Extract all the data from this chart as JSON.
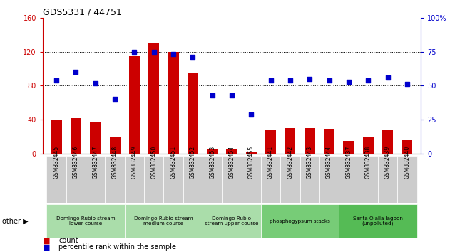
{
  "title": "GDS5331 / 44751",
  "samples": [
    "GSM832445",
    "GSM832446",
    "GSM832447",
    "GSM832448",
    "GSM832449",
    "GSM832450",
    "GSM832451",
    "GSM832452",
    "GSM832453",
    "GSM832454",
    "GSM832455",
    "GSM832441",
    "GSM832442",
    "GSM832443",
    "GSM832444",
    "GSM832437",
    "GSM832438",
    "GSM832439",
    "GSM832440"
  ],
  "counts": [
    40,
    42,
    37,
    20,
    115,
    130,
    120,
    95,
    5,
    5,
    2,
    28,
    30,
    30,
    29,
    15,
    20,
    28,
    16
  ],
  "percentiles": [
    54,
    60,
    52,
    40,
    75,
    75,
    73,
    71,
    43,
    43,
    29,
    54,
    54,
    55,
    54,
    53,
    54,
    56,
    51
  ],
  "ylim_left": [
    0,
    160
  ],
  "ylim_right": [
    0,
    100
  ],
  "yticks_left": [
    0,
    40,
    80,
    120,
    160
  ],
  "yticks_right": [
    0,
    25,
    50,
    75,
    100
  ],
  "groups": [
    {
      "label": "Domingo Rubio stream\nlower course",
      "start": 0,
      "end": 3,
      "color": "#aaddaa"
    },
    {
      "label": "Domingo Rubio stream\nmedium course",
      "start": 4,
      "end": 7,
      "color": "#aaddaa"
    },
    {
      "label": "Domingo Rubio\nstream upper course",
      "start": 8,
      "end": 10,
      "color": "#aaddaa"
    },
    {
      "label": "phosphogypsum stacks",
      "start": 11,
      "end": 14,
      "color": "#77cc77"
    },
    {
      "label": "Santa Olalla lagoon\n(unpolluted)",
      "start": 15,
      "end": 18,
      "color": "#55bb55"
    }
  ],
  "bar_color": "#cc0000",
  "dot_color": "#0000cc",
  "xtick_bg": "#cccccc",
  "plot_bg": "#ffffff",
  "left_axis_color": "#cc0000",
  "right_axis_color": "#0000cc"
}
